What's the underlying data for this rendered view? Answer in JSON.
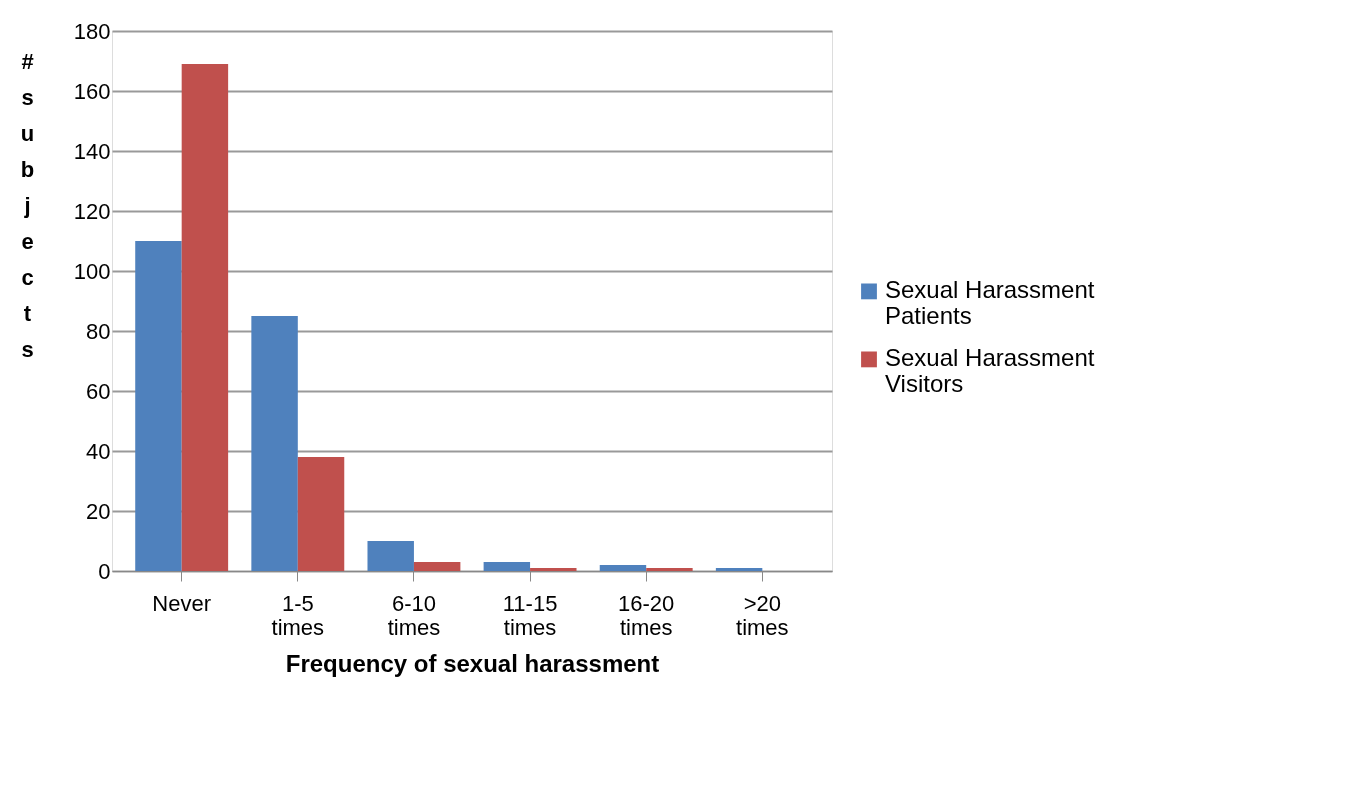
{
  "chart_data": {
    "type": "bar",
    "xlabel": "Frequency of sexual harassment",
    "ylabel": "# subjects",
    "categories": [
      "Never",
      "1-5\ntimes",
      "6-10\ntimes",
      "11-15\ntimes",
      "16-20\ntimes",
      ">20\ntimes"
    ],
    "series": [
      {
        "name": "Sexual Harassment Patients",
        "color": "#4f81bd",
        "values": [
          110,
          85,
          10,
          3,
          2,
          1
        ]
      },
      {
        "name": "Sexual Harassment Visitors",
        "color": "#c0504d",
        "values": [
          169,
          38,
          3,
          1,
          1,
          0
        ]
      }
    ],
    "ylim": [
      0,
      180
    ],
    "yticks": [
      0,
      20,
      40,
      60,
      80,
      100,
      120,
      140,
      160,
      180
    ],
    "grid": "y",
    "legend": "right"
  }
}
